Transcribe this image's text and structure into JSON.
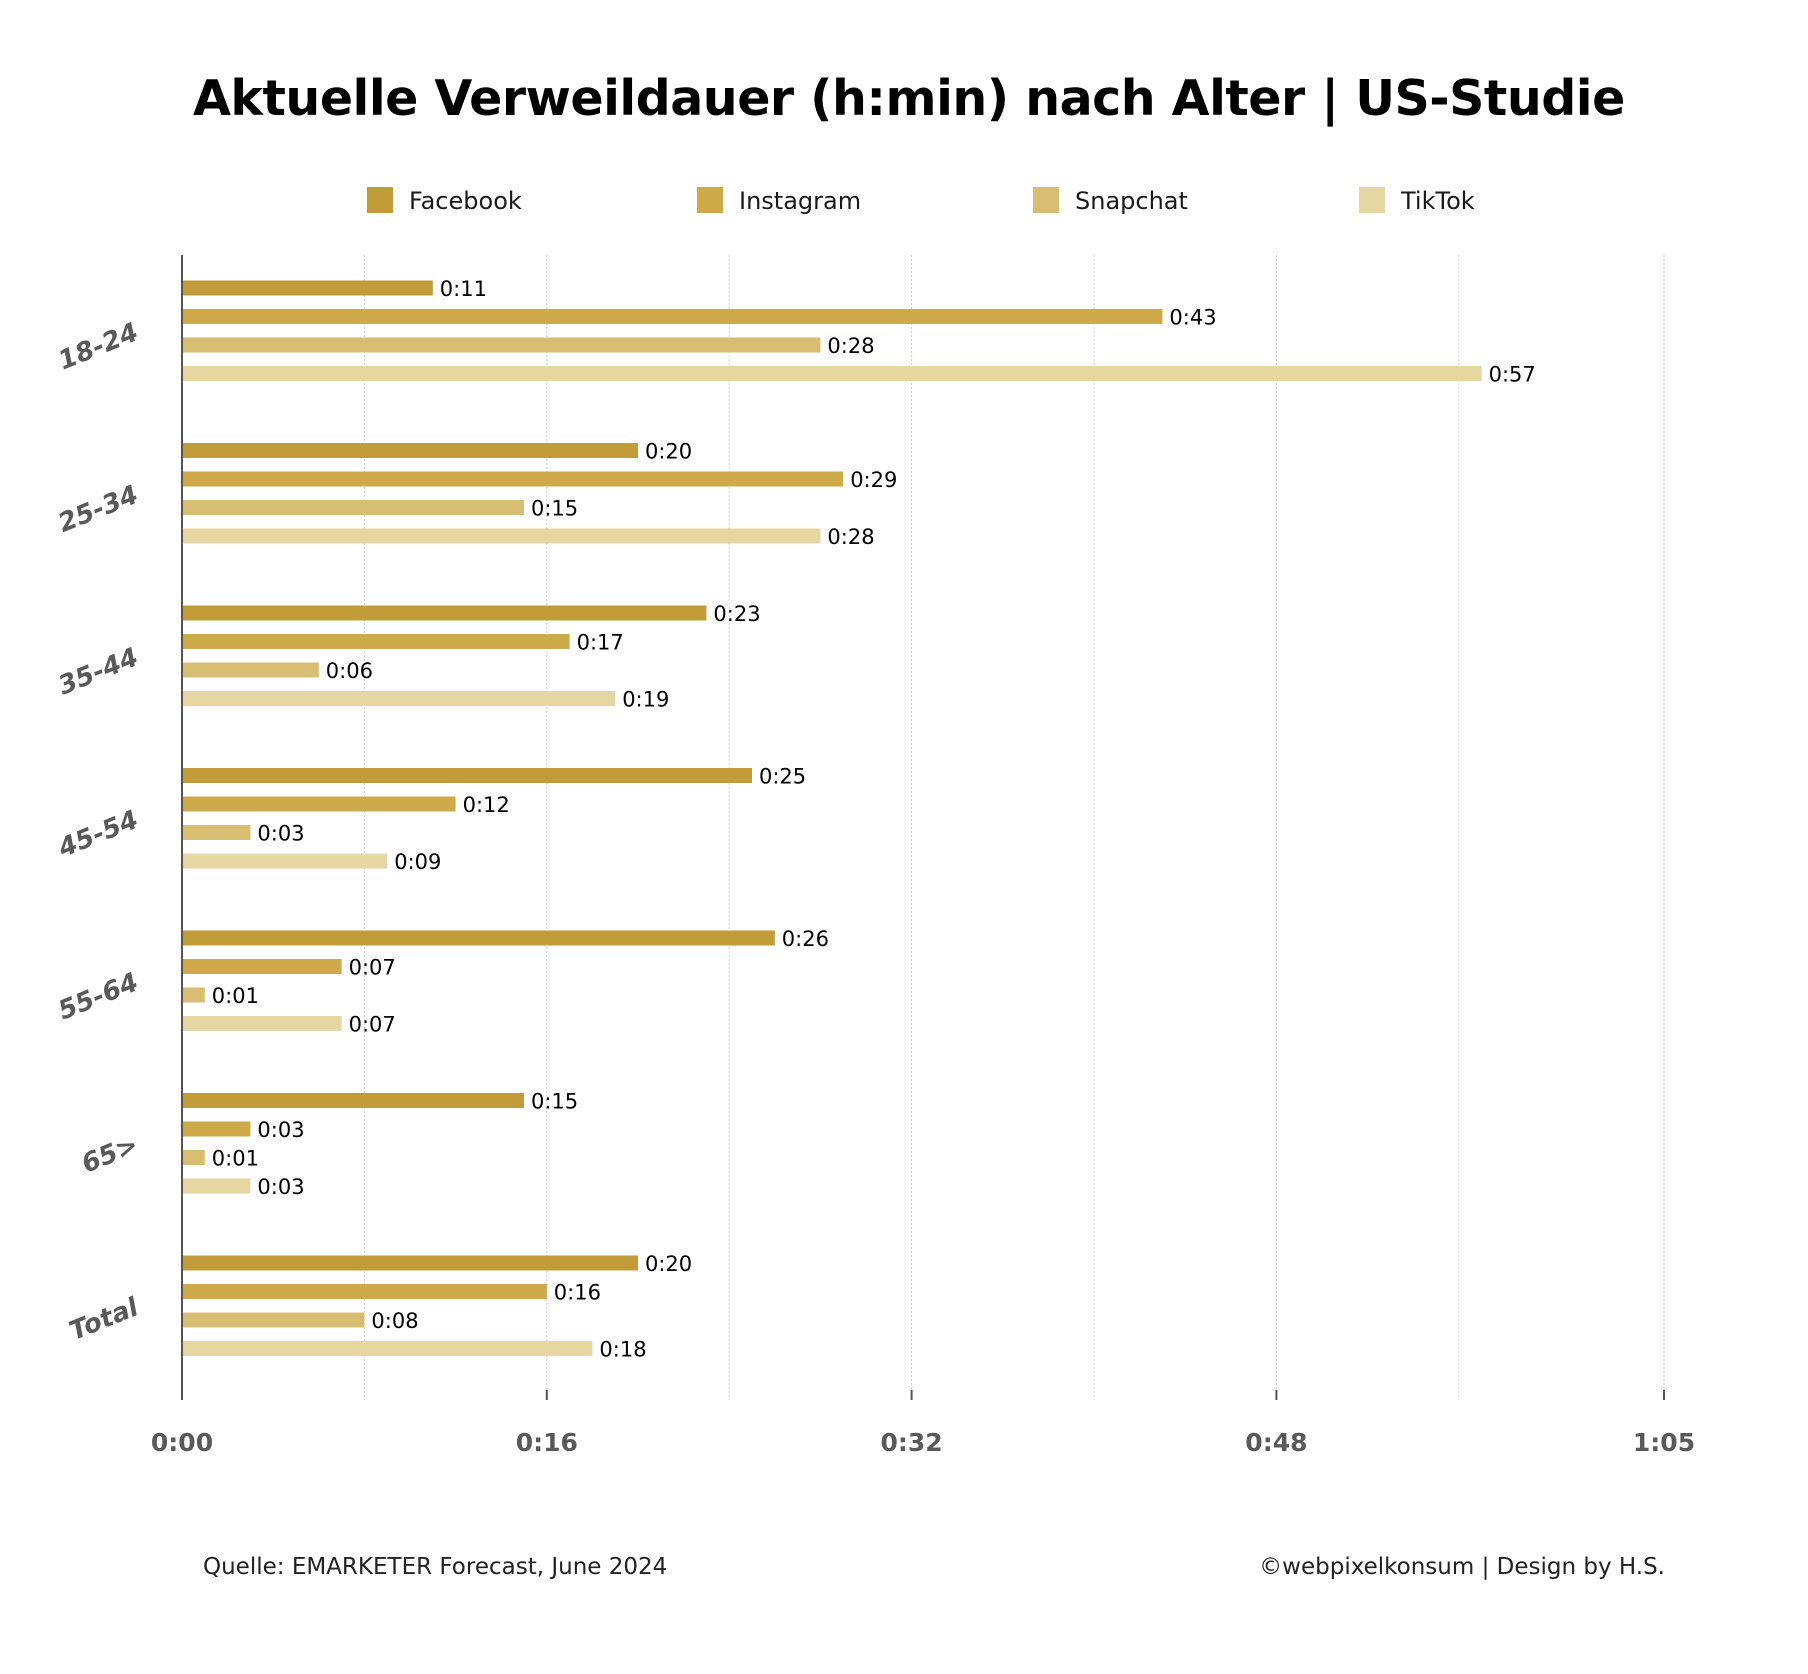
{
  "chart_data": {
    "type": "bar",
    "orientation": "horizontal",
    "title": "Aktuelle Verweildauer (h:min) nach Alter | US-Studie",
    "xlabel": "",
    "ylabel": "",
    "categories": [
      "18-24",
      "25-34",
      "35-44",
      "45-54",
      "55-64",
      "65>",
      "Total"
    ],
    "series": [
      {
        "name": "Facebook",
        "color": "#C39C3A",
        "values": [
          11,
          20,
          23,
          25,
          26,
          15,
          20
        ],
        "labels": [
          "0:11",
          "0:20",
          "0:23",
          "0:25",
          "0:26",
          "0:15",
          "0:20"
        ]
      },
      {
        "name": "Instagram",
        "color": "#CEAA4B",
        "values": [
          43,
          29,
          17,
          12,
          7,
          3,
          16
        ],
        "labels": [
          "0:43",
          "0:29",
          "0:17",
          "0:12",
          "0:07",
          "0:03",
          "0:16"
        ]
      },
      {
        "name": "Snapchat",
        "color": "#D8BE72",
        "values": [
          28,
          15,
          6,
          3,
          1,
          1,
          8
        ],
        "labels": [
          "0:28",
          "0:15",
          "0:06",
          "0:03",
          "0:01",
          "0:01",
          "0:08"
        ]
      },
      {
        "name": "TikTok",
        "color": "#E5D6A2",
        "values": [
          57,
          28,
          19,
          9,
          7,
          3,
          18
        ],
        "labels": [
          "0:57",
          "0:28",
          "0:19",
          "0:09",
          "0:07",
          "0:03",
          "0:18"
        ]
      }
    ],
    "xlim": [
      0,
      65
    ],
    "xticks": [
      0,
      16,
      32,
      48,
      65
    ],
    "xtick_labels": [
      "0:00",
      "0:16",
      "0:32",
      "0:48",
      "1:05"
    ],
    "minor_gridlines": [
      8,
      24,
      40,
      56
    ],
    "grid": true,
    "legend_position": "top"
  },
  "footer": {
    "source": "Quelle: EMARKETER Forecast, June 2024",
    "credit": "©webpixelkonsum | Design by H.S."
  }
}
